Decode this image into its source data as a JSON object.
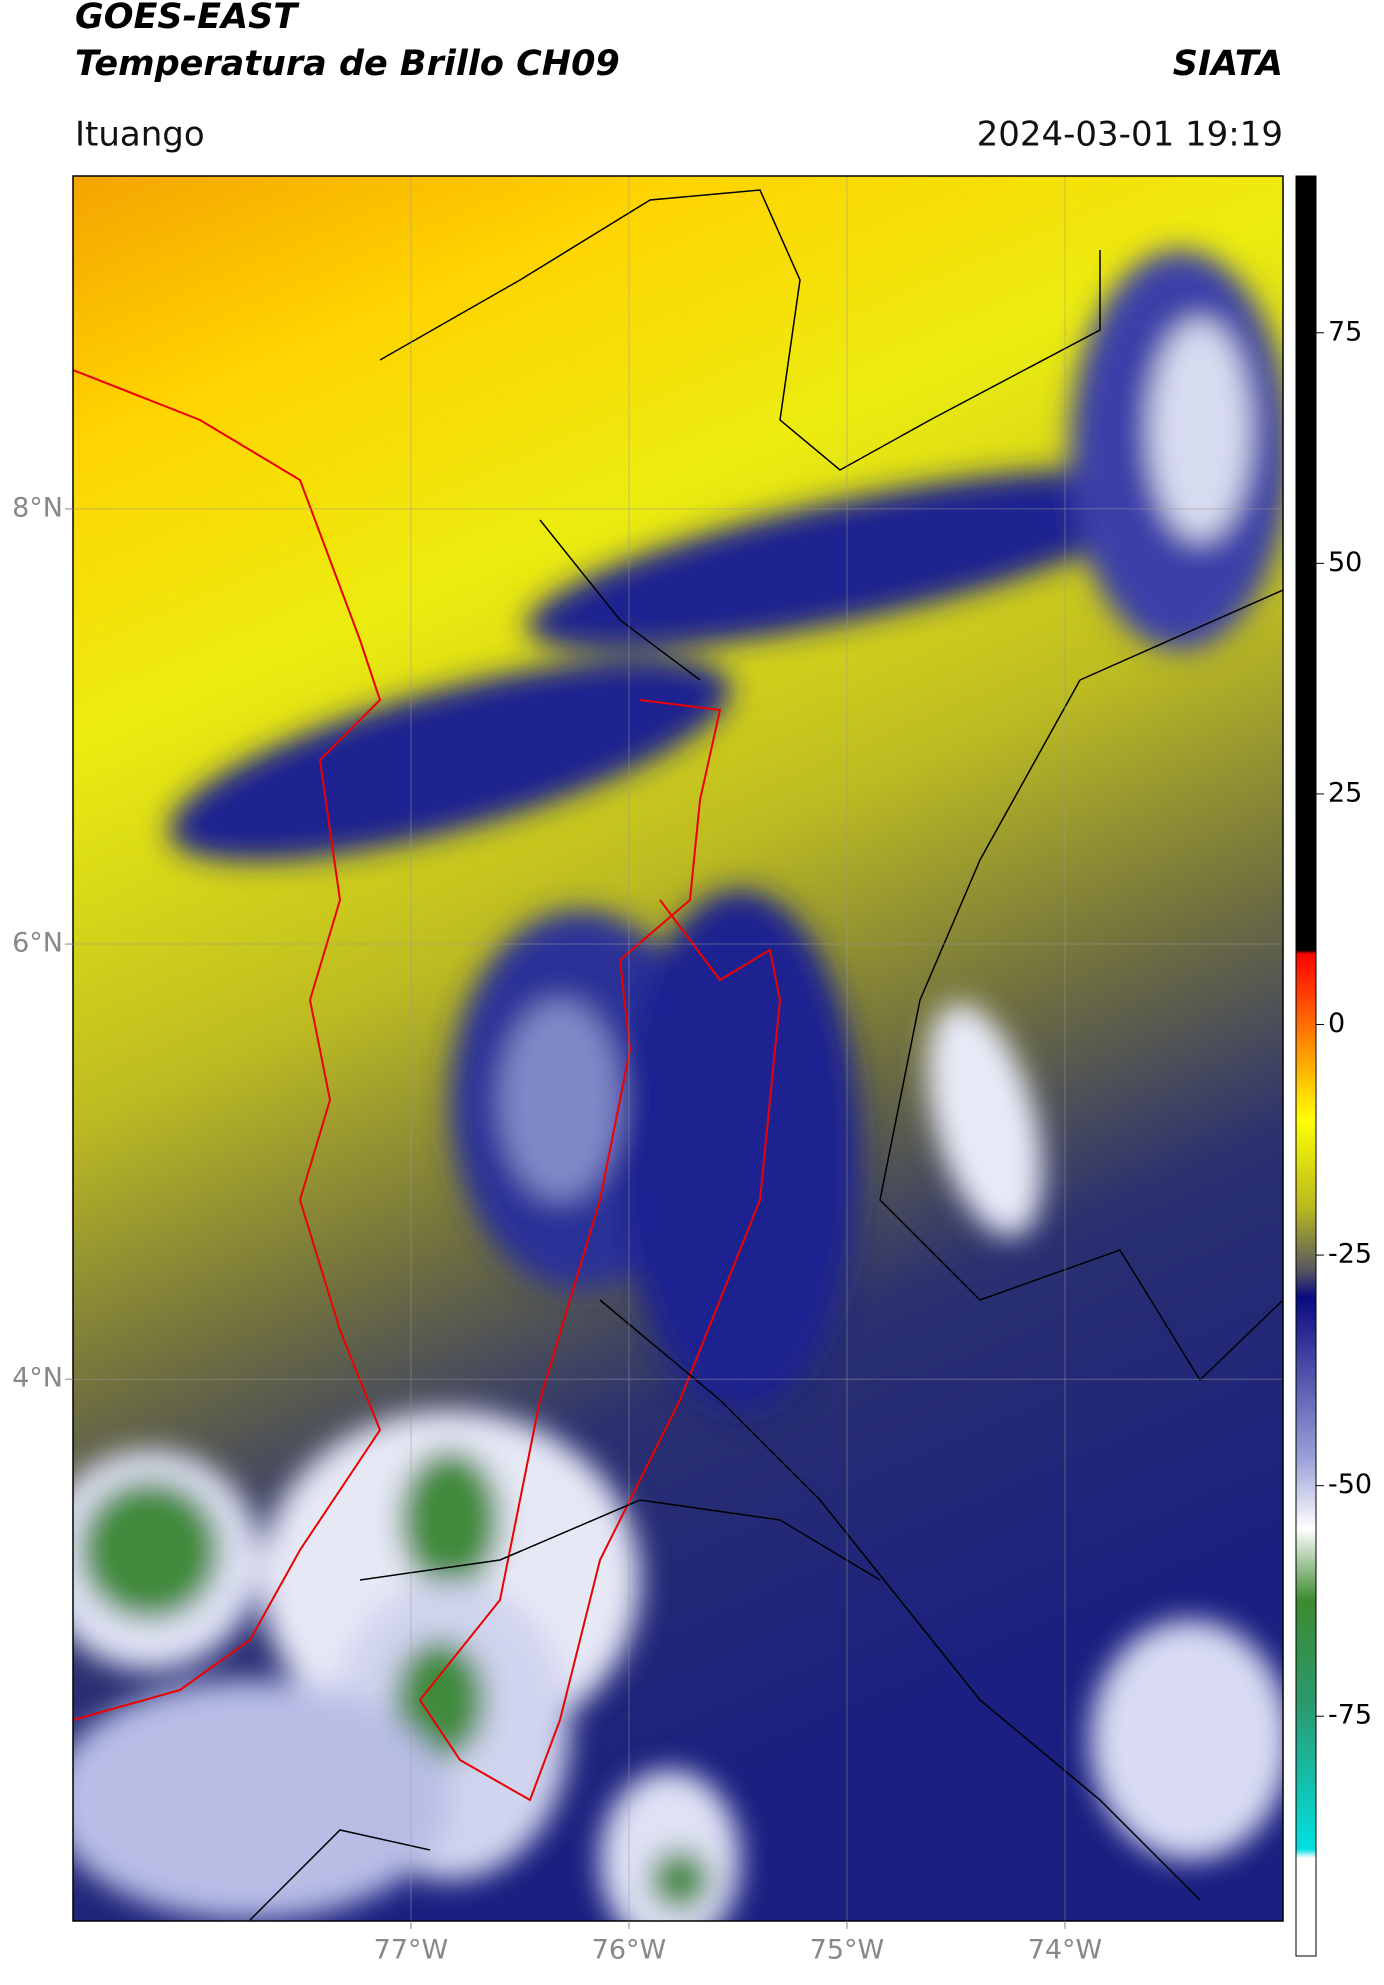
{
  "header": {
    "title": "GOES-EAST",
    "subtitle": "Temperatura de Brillo CH09",
    "source": "SIATA",
    "location": "Ituango",
    "datetime": "2024-03-01 19:19"
  },
  "map": {
    "xlim": [
      -78.55,
      -73.0
    ],
    "ylim": [
      1.51,
      9.53
    ],
    "xticks": [
      {
        "value": -77,
        "label": "77°W"
      },
      {
        "value": -76,
        "label": "76°W"
      },
      {
        "value": -75,
        "label": "75°W"
      },
      {
        "value": -74,
        "label": "74°W"
      }
    ],
    "yticks": [
      {
        "value": 8,
        "label": "8°N"
      },
      {
        "value": 6,
        "label": "6°N"
      },
      {
        "value": 4,
        "label": "4°N"
      }
    ],
    "grid": true
  },
  "colorbar": {
    "clim": [
      -101,
      92
    ],
    "ticks": [
      75,
      50,
      25,
      0,
      -25,
      -50,
      -75
    ]
  }
}
